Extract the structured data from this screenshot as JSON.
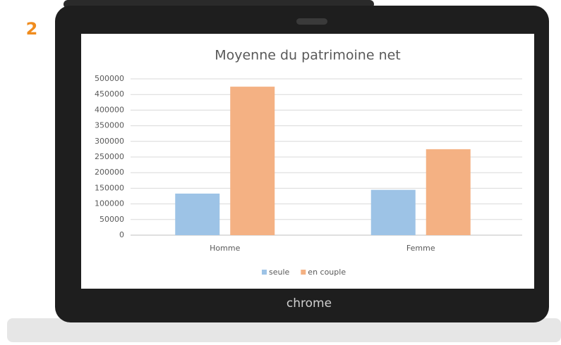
{
  "badge": "2",
  "device_label": "chrome",
  "chart_data": {
    "type": "bar",
    "title": "Moyenne du patrimoine net",
    "categories": [
      "Homme",
      "Femme"
    ],
    "series": [
      {
        "name": "seule",
        "color": "#9dc3e6",
        "values": [
          133000,
          145000
        ]
      },
      {
        "name": "en couple",
        "color": "#f4b183",
        "values": [
          475000,
          275000
        ]
      }
    ],
    "ylim": [
      0,
      500000
    ],
    "yticks": [
      0,
      50000,
      100000,
      150000,
      200000,
      250000,
      300000,
      350000,
      400000,
      450000,
      500000
    ],
    "grid": true,
    "legend": "bottom"
  }
}
